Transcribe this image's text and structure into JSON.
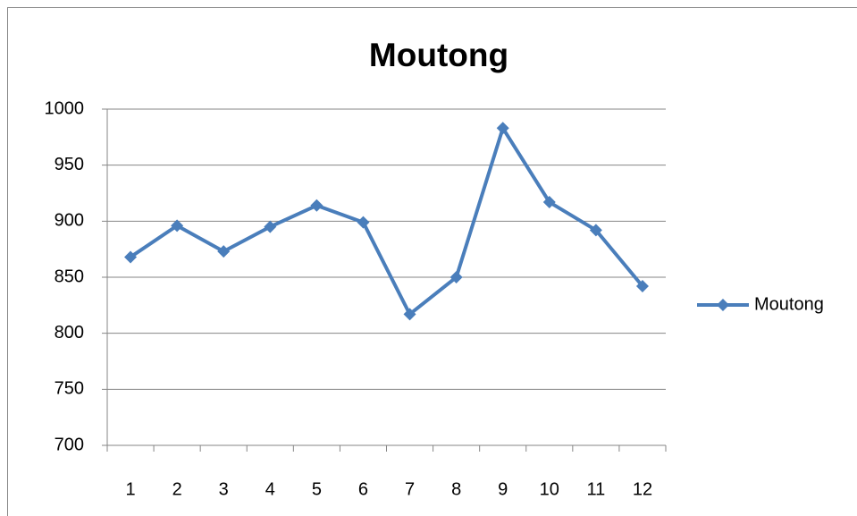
{
  "chart_data": {
    "type": "line",
    "title": "Moutong",
    "categories": [
      "1",
      "2",
      "3",
      "4",
      "5",
      "6",
      "7",
      "8",
      "9",
      "10",
      "11",
      "12"
    ],
    "series": [
      {
        "name": "Moutong",
        "color": "#4a7ebb",
        "values": [
          868,
          896,
          873,
          895,
          914,
          899,
          817,
          850,
          983,
          917,
          892,
          842
        ]
      }
    ],
    "ylim": [
      700,
      1000
    ],
    "yticks": [
      700,
      750,
      800,
      850,
      900,
      950,
      1000
    ],
    "grid": true,
    "legend": "right"
  }
}
